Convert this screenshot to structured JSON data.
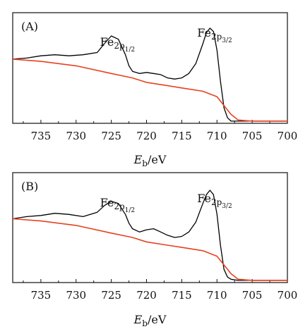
{
  "chart_data": [
    {
      "type": "line",
      "panel_label": "(A)",
      "xlabel_main": "E",
      "xlabel_sub": "b",
      "xlabel_rest": "/eV",
      "xlim": [
        739,
        700
      ],
      "x_reversed": true,
      "x_ticks": [
        735,
        730,
        725,
        720,
        715,
        710,
        705,
        700
      ],
      "y_ticks_visible": false,
      "annotations": [
        {
          "base": "Fe",
          "sub": "2p",
          "subsub": "1/2",
          "x": 724.6
        },
        {
          "base": "Fe",
          "sub": "2p",
          "subsub": "3/2",
          "x": 710.8
        }
      ],
      "series": [
        {
          "role": "spectrum",
          "color": "#000000",
          "x": [
            739,
            737,
            735,
            733,
            731,
            729,
            727,
            726,
            725,
            724,
            723,
            722.5,
            722,
            721,
            720,
            719,
            718,
            717,
            716,
            715,
            714,
            713,
            712,
            711.5,
            711,
            710.5,
            710,
            709.5,
            709,
            708.5,
            708,
            707,
            706,
            705,
            703,
            701,
            700
          ],
          "y": [
            0.58,
            0.59,
            0.61,
            0.62,
            0.61,
            0.62,
            0.64,
            0.72,
            0.79,
            0.76,
            0.62,
            0.52,
            0.47,
            0.45,
            0.46,
            0.45,
            0.44,
            0.41,
            0.4,
            0.41,
            0.45,
            0.54,
            0.72,
            0.82,
            0.86,
            0.83,
            0.66,
            0.38,
            0.14,
            0.05,
            0.02,
            0.02,
            0.02,
            0.02,
            0.02,
            0.02,
            0.02
          ]
        },
        {
          "role": "background",
          "color": "#e8411f",
          "x": [
            739,
            735,
            730,
            725,
            722,
            720,
            717,
            715,
            712,
            710,
            709,
            708,
            707,
            705,
            703,
            700
          ],
          "y": [
            0.58,
            0.56,
            0.52,
            0.45,
            0.41,
            0.37,
            0.34,
            0.32,
            0.29,
            0.24,
            0.16,
            0.08,
            0.03,
            0.02,
            0.02,
            0.02
          ]
        }
      ]
    },
    {
      "type": "line",
      "panel_label": "(B)",
      "xlabel_main": "E",
      "xlabel_sub": "b",
      "xlabel_rest": "/eV",
      "xlim": [
        739,
        700
      ],
      "x_reversed": true,
      "x_ticks": [
        735,
        730,
        725,
        720,
        715,
        710,
        705,
        700
      ],
      "y_ticks_visible": false,
      "annotations": [
        {
          "base": "Fe",
          "sub": "2p",
          "subsub": "1/2",
          "x": 724.6
        },
        {
          "base": "Fe",
          "sub": "2p",
          "subsub": "3/2",
          "x": 710.8
        }
      ],
      "series": [
        {
          "role": "spectrum",
          "color": "#000000",
          "x": [
            739,
            737,
            735,
            733,
            731,
            729,
            727,
            726,
            725,
            724,
            723,
            722.5,
            722,
            721,
            720,
            719,
            718,
            717,
            716,
            715,
            714,
            713,
            712,
            711.5,
            711,
            710.5,
            710,
            709.5,
            709,
            708.5,
            708,
            707,
            706,
            705,
            703,
            701,
            700
          ],
          "y": [
            0.58,
            0.6,
            0.61,
            0.63,
            0.62,
            0.6,
            0.64,
            0.7,
            0.74,
            0.72,
            0.62,
            0.54,
            0.49,
            0.46,
            0.48,
            0.49,
            0.46,
            0.43,
            0.41,
            0.42,
            0.46,
            0.55,
            0.72,
            0.8,
            0.84,
            0.8,
            0.62,
            0.34,
            0.12,
            0.05,
            0.03,
            0.02,
            0.02,
            0.02,
            0.02,
            0.02,
            0.02
          ]
        },
        {
          "role": "background",
          "color": "#e8411f",
          "x": [
            739,
            735,
            730,
            725,
            722,
            720,
            717,
            715,
            712,
            710,
            709,
            708,
            707,
            705,
            703,
            700
          ],
          "y": [
            0.58,
            0.56,
            0.52,
            0.45,
            0.41,
            0.37,
            0.34,
            0.32,
            0.29,
            0.24,
            0.16,
            0.08,
            0.03,
            0.02,
            0.02,
            0.02
          ]
        }
      ]
    }
  ]
}
